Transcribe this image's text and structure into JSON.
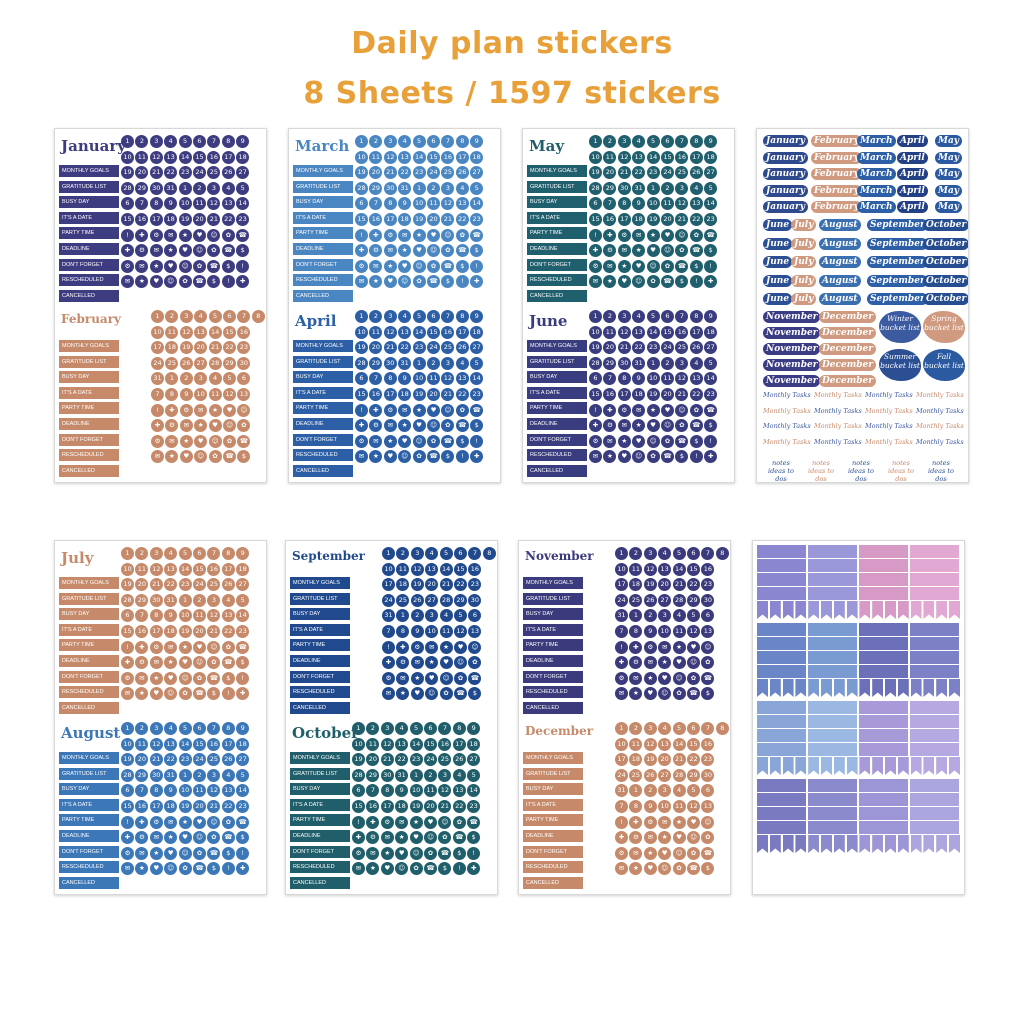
{
  "header": {
    "title": "Daily plan stickers",
    "subtitle": "8 Sheets  /  1597 stickers"
  },
  "labels": [
    "MONTHLY GOALS",
    "GRATITUDE LIST",
    "BUSY DAY",
    "IT'S A DATE",
    "PARTY TIME",
    "DEADLINE",
    "DON'T FORGET",
    "RESCHEDULED",
    "CANCELLED"
  ],
  "sheets": [
    {
      "months": [
        {
          "name": "January",
          "color": "#3e3c80"
        },
        {
          "name": "February",
          "color": "#c68a6a"
        }
      ]
    },
    {
      "months": [
        {
          "name": "March",
          "color": "#4a87c2"
        },
        {
          "name": "April",
          "color": "#2c5fa6"
        }
      ]
    },
    {
      "months": [
        {
          "name": "May",
          "color": "#205f6e"
        },
        {
          "name": "June",
          "color": "#393c7e"
        }
      ]
    },
    {
      "months": [
        {
          "name": "July",
          "color": "#c68a6a"
        },
        {
          "name": "August",
          "color": "#3c77b8"
        }
      ]
    },
    {
      "months": [
        {
          "name": "September",
          "color": "#214a8e"
        },
        {
          "name": "October",
          "color": "#1f5e6a"
        }
      ]
    },
    {
      "months": [
        {
          "name": "November",
          "color": "#3a3a7c"
        },
        {
          "name": "December",
          "color": "#c68a6a"
        }
      ]
    }
  ],
  "word_sheet": {
    "rows": [
      [
        "January",
        "February",
        "March",
        "April",
        "May"
      ],
      [
        "June",
        "July",
        "August",
        "September",
        "October"
      ]
    ],
    "nov_dec": [
      "November",
      "December"
    ],
    "blobs": [
      "Winter bucket list",
      "Spring bucket list",
      "Summer bucket list",
      "Fall bucket list"
    ],
    "monthly_tasks": "Monthly Tasks",
    "notes": "notes ideas to dos"
  },
  "colors": {
    "title": "#e8a13a",
    "navy": "#3e3c80",
    "peach": "#c68a6a",
    "blue": "#4a87c2",
    "teal": "#205f6e",
    "pink": "#d79ac7",
    "lavender": "#9c96d6"
  }
}
